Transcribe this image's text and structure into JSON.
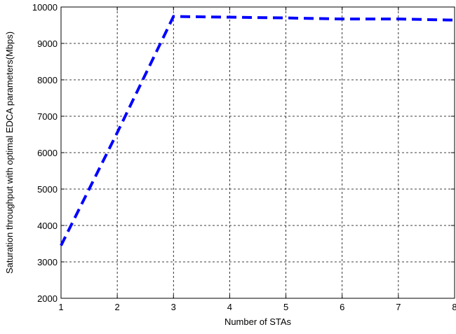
{
  "chart_data": {
    "type": "line",
    "title": "",
    "xlabel": "Number of STAs",
    "ylabel": "Saturation throughput with optimal EDCA parameters(Mbps)",
    "xlim": [
      1,
      8
    ],
    "ylim": [
      2000,
      10000
    ],
    "xticks": [
      1,
      2,
      3,
      4,
      5,
      6,
      7,
      8
    ],
    "yticks": [
      2000,
      3000,
      4000,
      5000,
      6000,
      7000,
      8000,
      9000,
      10000
    ],
    "xtick_labels": [
      "1",
      "2",
      "3",
      "4",
      "5",
      "6",
      "7",
      "8"
    ],
    "ytick_labels": [
      "2000",
      "3000",
      "4000",
      "5000",
      "6000",
      "7000",
      "8000",
      "9000",
      "10000"
    ],
    "grid": true,
    "series": [
      {
        "color": "#0000ff",
        "line_style": "dashed",
        "x": [
          1,
          2,
          3,
          4,
          5,
          6,
          7,
          8
        ],
        "y": [
          3450,
          6550,
          9740,
          9720,
          9700,
          9670,
          9670,
          9640
        ]
      }
    ]
  }
}
